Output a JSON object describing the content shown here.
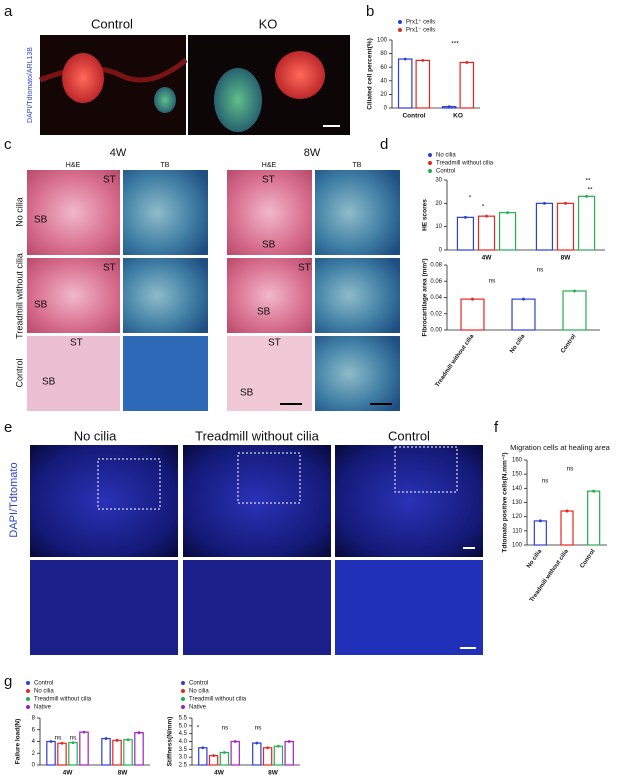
{
  "panels": {
    "a": {
      "label": "a",
      "titles": [
        "Control",
        "KO"
      ],
      "stain": "DAPI/Tdtomato/ARL13B"
    },
    "b": {
      "label": "b"
    },
    "c": {
      "label": "c",
      "times": [
        "4W",
        "8W"
      ],
      "stains": [
        "H&E",
        "TB",
        "H&E",
        "TB"
      ],
      "rows": [
        "No cilia",
        "Treadmill without cilia",
        "Control"
      ],
      "tissue": [
        "ST",
        "SB"
      ]
    },
    "d": {
      "label": "d"
    },
    "e": {
      "label": "e",
      "titles": [
        "No cilia",
        "Treadmill without cilia",
        "Control"
      ],
      "stain": "DAPI/Tdtomato"
    },
    "f": {
      "label": "f"
    },
    "g": {
      "label": "g"
    }
  },
  "chart_data": [
    {
      "type": "bar",
      "ylabel": "Ciliated cell percent(%)",
      "categories": [
        "Control",
        "KO"
      ],
      "series": [
        {
          "name": "Prx1⁺ cells",
          "color": "#2b3fd6",
          "values": [
            72,
            2
          ]
        },
        {
          "name": "Prx1⁻ cells",
          "color": "#e8251f",
          "values": [
            70,
            67
          ]
        }
      ],
      "ylim": [
        0,
        100
      ],
      "yticks": [
        0,
        20,
        40,
        60,
        80,
        100
      ],
      "annotations": [
        "***"
      ]
    },
    {
      "type": "bar",
      "ylabel": "HE scores",
      "categories": [
        "4W",
        "8W"
      ],
      "series": [
        {
          "name": "No cilia",
          "color": "#2b3fd6",
          "values": [
            14,
            20
          ]
        },
        {
          "name": "Treadmill without cilia",
          "color": "#e8251f",
          "values": [
            14.5,
            20
          ]
        },
        {
          "name": "Control",
          "color": "#22b14c",
          "values": [
            16,
            23
          ]
        }
      ],
      "ylim": [
        0,
        30
      ],
      "yticks": [
        0,
        10,
        20,
        30
      ],
      "annotations": [
        "*",
        "*",
        "**",
        "**"
      ]
    },
    {
      "type": "bar",
      "ylabel": "Fibrocartilage area (mm²)",
      "categories": [
        "Treadmill without cilia",
        "No cilia",
        "Control"
      ],
      "values": [
        0.038,
        0.038,
        0.048
      ],
      "colors": [
        "#e8251f",
        "#2b3fd6",
        "#22b14c"
      ],
      "ylim": [
        0,
        0.08
      ],
      "yticks": [
        {
          "value": 0,
          "label": "0.00"
        },
        {
          "value": 0.02,
          "label": "0.02"
        },
        {
          "value": 0.04,
          "label": "0.04"
        },
        {
          "value": 0.06,
          "label": "0.06"
        },
        {
          "value": 0.08,
          "label": "0.08"
        }
      ],
      "annotations": [
        "ns",
        "ns"
      ]
    },
    {
      "type": "bar",
      "title": "Migration cells at healing area",
      "ylabel": "Tdtomato positive cells(N.mm⁻²)",
      "categories": [
        "No cilia",
        "Treadmill without cilia",
        "Control"
      ],
      "values": [
        117,
        124,
        138
      ],
      "colors": [
        "#2b3fd6",
        "#e8251f",
        "#22b14c"
      ],
      "ylim": [
        100,
        160
      ],
      "yticks": [
        100,
        110,
        120,
        130,
        140,
        150,
        160
      ],
      "annotations": [
        "ns",
        "ns"
      ]
    },
    {
      "type": "bar",
      "ylabel": "Failure load(N)",
      "categories": [
        "4W",
        "8W"
      ],
      "series": [
        {
          "name": "Control",
          "color": "#2b3fd6",
          "values": [
            4.0,
            4.5
          ]
        },
        {
          "name": "No cilia",
          "color": "#e8251f",
          "values": [
            3.7,
            4.2
          ]
        },
        {
          "name": "Treadmill without cilia",
          "color": "#22b14c",
          "values": [
            3.8,
            4.3
          ]
        },
        {
          "name": "Native",
          "color": "#a020c0",
          "values": [
            5.6,
            5.5
          ]
        }
      ],
      "ylim": [
        0,
        8
      ],
      "yticks": [
        0,
        2,
        4,
        6,
        8
      ],
      "annotations": [
        "ns",
        "ns"
      ]
    },
    {
      "type": "bar",
      "ylabel": "Stiffness(N/mm)",
      "categories": [
        "4W",
        "8W"
      ],
      "series": [
        {
          "name": "Control",
          "color": "#2b3fd6",
          "values": [
            3.6,
            3.9
          ]
        },
        {
          "name": "No cilia",
          "color": "#e8251f",
          "values": [
            3.1,
            3.6
          ]
        },
        {
          "name": "Treadmill without cilia",
          "color": "#22b14c",
          "values": [
            3.3,
            3.7
          ]
        },
        {
          "name": "Native",
          "color": "#a020c0",
          "values": [
            4.0,
            4.0
          ]
        }
      ],
      "ylim": [
        2.5,
        5.5
      ],
      "yticks": [
        2.5,
        {
          "value": 3,
          "label": "3.0"
        },
        3.5,
        {
          "value": 4,
          "label": "4.0"
        },
        4.5,
        {
          "value": 5,
          "label": "5.0"
        },
        5.5
      ],
      "annotations": [
        "*",
        "ns",
        "ns"
      ]
    }
  ]
}
